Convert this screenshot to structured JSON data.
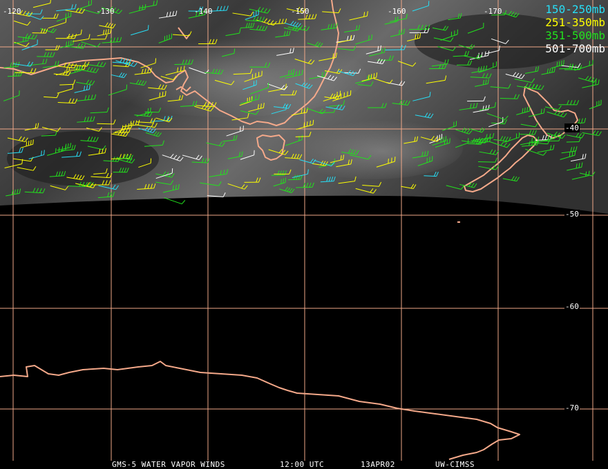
{
  "legend": [
    {
      "label": "150-250mb",
      "color": "#27dff7"
    },
    {
      "label": "251-350mb",
      "color": "#ffff00"
    },
    {
      "label": "351-500mb",
      "color": "#22e21d"
    },
    {
      "label": "501-700mb",
      "color": "#ffffff"
    }
  ],
  "longitude_labels": [
    "-120",
    "-130",
    "-140",
    "-150",
    "-160",
    "-170"
  ],
  "latitude_labels": [
    "-40",
    "-50",
    "-60",
    "-70"
  ],
  "footer": {
    "satellite": "GMS-5 WATER VAPOR WINDS",
    "time": "12:00 UTC",
    "date": "13APR02",
    "source": "UW-CIMSS"
  },
  "colors": {
    "grid": "#f0a888",
    "coastline": "#f5a98a",
    "background": "#000000"
  }
}
